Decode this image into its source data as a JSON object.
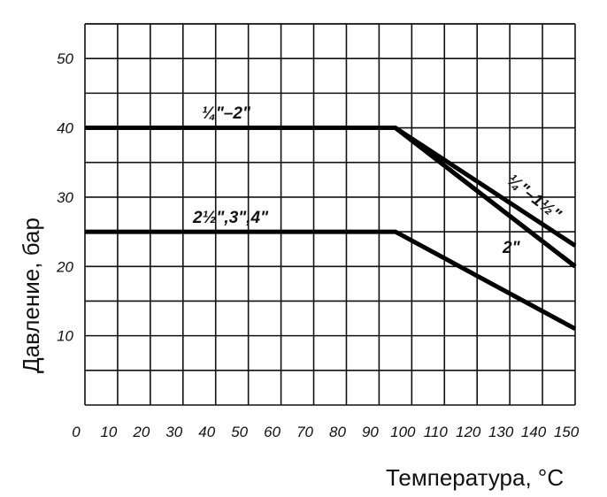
{
  "chart_data": {
    "type": "line",
    "xlabel": "Температура, °C",
    "ylabel": "Давление, бар",
    "xlim": [
      0,
      150
    ],
    "ylim": [
      0,
      55
    ],
    "x_ticks": [
      0,
      10,
      20,
      30,
      40,
      50,
      60,
      70,
      80,
      90,
      100,
      110,
      120,
      130,
      140,
      150
    ],
    "y_ticks": [
      10,
      20,
      30,
      40,
      50
    ],
    "grid": true,
    "series": [
      {
        "name": "¼\"–2\"",
        "x": [
          0,
          95,
          150
        ],
        "y": [
          40,
          40,
          20
        ]
      },
      {
        "name": "¼\"–1½\"",
        "x": [
          0,
          95,
          150
        ],
        "y": [
          40,
          40,
          23
        ]
      },
      {
        "name": "2\"",
        "x": [
          0,
          95,
          150
        ],
        "y": [
          40,
          40,
          20
        ]
      },
      {
        "name": "2½\",3\",4\"",
        "x": [
          0,
          95,
          150
        ],
        "y": [
          25,
          25,
          11
        ]
      }
    ]
  }
}
